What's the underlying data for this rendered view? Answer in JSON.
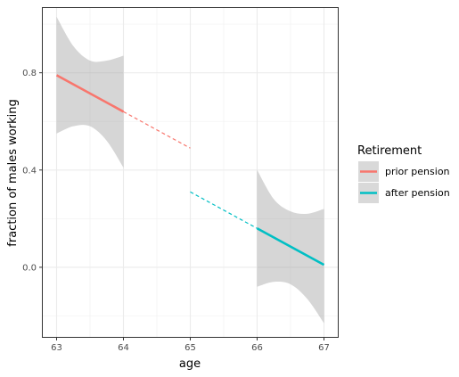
{
  "chart_data": {
    "type": "line",
    "title": "",
    "xlabel": "age",
    "ylabel": "fraction of males working",
    "xlim": [
      62.78,
      67.22
    ],
    "ylim": [
      -0.29,
      1.07
    ],
    "x_ticks": [
      63,
      64,
      65,
      66,
      67
    ],
    "x_tick_labels": [
      "63",
      "64",
      "65",
      "66",
      "67"
    ],
    "y_ticks": [
      0.0,
      0.4,
      0.8
    ],
    "y_tick_labels": [
      "0.0",
      "0.4",
      "0.8"
    ],
    "grid": true,
    "legend": {
      "title": "Retirement",
      "position": "right",
      "entries": [
        "prior pension",
        "after pension"
      ]
    },
    "colors": {
      "prior_pension": "#F8766D",
      "after_pension": "#00BFC4",
      "ribbon": "#999999"
    },
    "series": [
      {
        "name": "prior pension",
        "solid": {
          "x": [
            63,
            64
          ],
          "y": [
            0.79,
            0.64
          ]
        },
        "dashed": {
          "x": [
            64,
            65
          ],
          "y": [
            0.64,
            0.49
          ]
        },
        "ribbon": {
          "x": [
            63,
            63.25,
            63.5,
            63.75,
            64
          ],
          "lower": [
            0.55,
            0.58,
            0.58,
            0.52,
            0.41
          ],
          "upper": [
            1.03,
            0.91,
            0.85,
            0.85,
            0.87
          ]
        }
      },
      {
        "name": "after pension",
        "dashed": {
          "x": [
            65,
            66
          ],
          "y": [
            0.31,
            0.16
          ]
        },
        "solid": {
          "x": [
            66,
            67
          ],
          "y": [
            0.16,
            0.01
          ]
        },
        "ribbon": {
          "x": [
            66,
            66.25,
            66.5,
            66.75,
            67
          ],
          "lower": [
            -0.08,
            -0.06,
            -0.07,
            -0.13,
            -0.23
          ],
          "upper": [
            0.4,
            0.28,
            0.23,
            0.22,
            0.24
          ]
        }
      }
    ]
  }
}
